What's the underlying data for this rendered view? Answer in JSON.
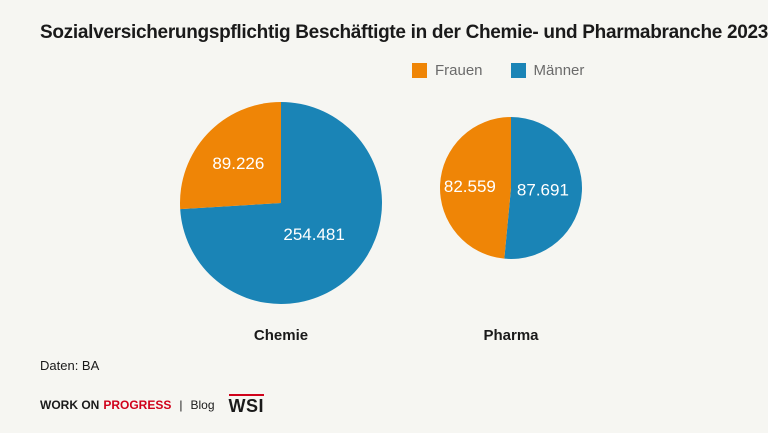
{
  "title": "Sozialversicherungspflichtig Beschäftigte in der Chemie- und Pharmabranche 2023",
  "legend": [
    {
      "label": "Frauen",
      "color": "#ef8506"
    },
    {
      "label": "Männer",
      "color": "#1a84b6"
    }
  ],
  "chart_data": {
    "type": "pie",
    "title": "Sozialversicherungspflichtig Beschäftigte in der Chemie- und Pharmabranche 2023",
    "legend_position": "top-right",
    "charts": [
      {
        "name": "Chemie",
        "slices": [
          {
            "label": "Frauen",
            "value": 89226,
            "display": "89.226"
          },
          {
            "label": "Männer",
            "value": 254481,
            "display": "254.481"
          }
        ]
      },
      {
        "name": "Pharma",
        "slices": [
          {
            "label": "Frauen",
            "value": 82559,
            "display": "82.559"
          },
          {
            "label": "Männer",
            "value": 87691,
            "display": "87.691"
          }
        ]
      }
    ]
  },
  "source": "Daten: BA",
  "footer": {
    "brand_part1": "WORK ON",
    "brand_part2": "PROGRESS",
    "separator": "|",
    "blog": "Blog",
    "logo": "WSI"
  }
}
